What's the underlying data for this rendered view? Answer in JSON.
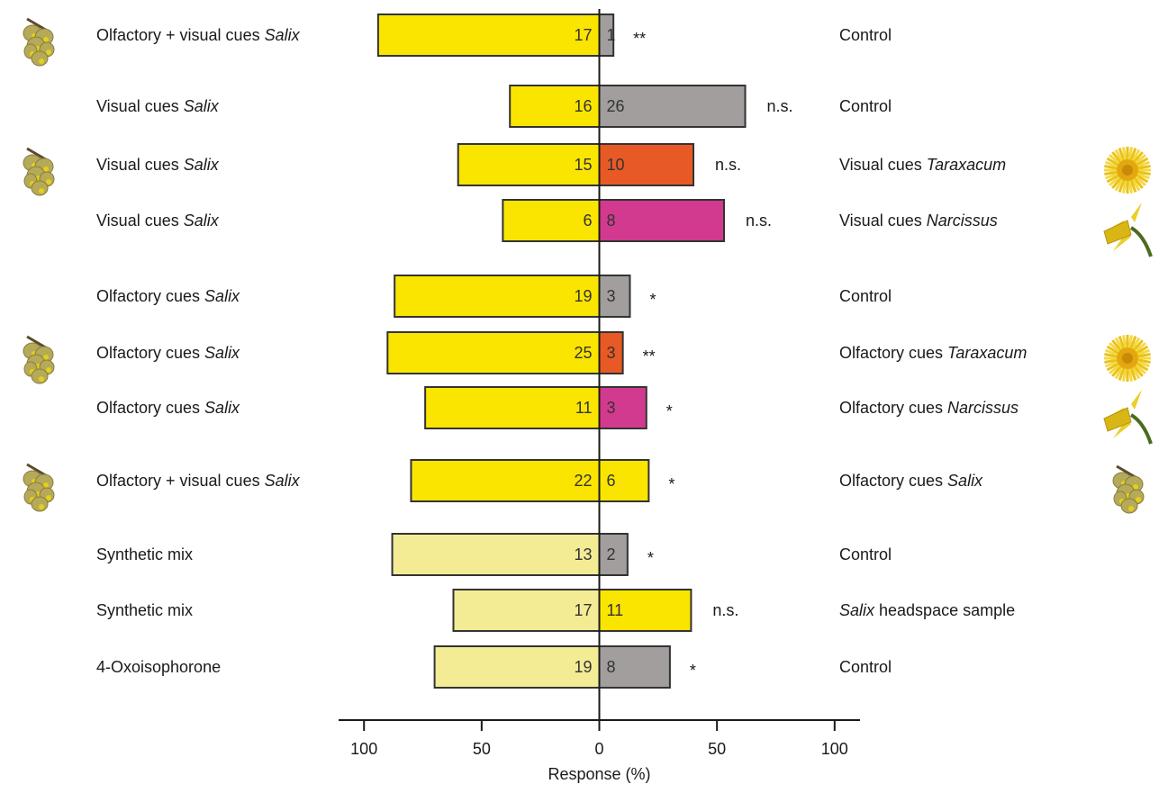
{
  "chart_data": {
    "type": "bar",
    "layout": "diverging-horizontal",
    "xlabel": "Response (%)",
    "xlim": [
      -100,
      100
    ],
    "xticks": [
      {
        "value": -100,
        "label": "100"
      },
      {
        "value": -50,
        "label": "50"
      },
      {
        "value": 0,
        "label": "0"
      },
      {
        "value": 50,
        "label": "50"
      },
      {
        "value": 100,
        "label": "100"
      }
    ],
    "colors": {
      "salix": "#fae500",
      "synthetic": "#f3ec95",
      "control": "#a19e9d",
      "taraxacum": "#e85a25",
      "narcissus": "#d23a8f",
      "bar_outline": "#333333"
    },
    "rows": [
      {
        "left_label": [
          "Olfactory + visual cues ",
          "Salix"
        ],
        "right_label": [
          "Control"
        ],
        "left_value": 94,
        "right_value": 6,
        "left_n": "17",
        "right_n": "1",
        "significance": "**",
        "left_color": "salix",
        "right_color": "control",
        "left_icon": "willow-catkin-icon",
        "right_icon": null,
        "group": 1
      },
      {
        "left_label": [
          "Visual cues ",
          "Salix"
        ],
        "right_label": [
          "Control"
        ],
        "left_value": 38,
        "right_value": 62,
        "left_n": "16",
        "right_n": "26",
        "significance": "n.s.",
        "left_color": "salix",
        "right_color": "control",
        "left_icon": null,
        "right_icon": null,
        "group": 1
      },
      {
        "left_label": [
          "Visual cues ",
          "Salix"
        ],
        "right_label": [
          "Visual cues ",
          "Taraxacum"
        ],
        "left_value": 60,
        "right_value": 40,
        "left_n": "15",
        "right_n": "10",
        "significance": "n.s.",
        "left_color": "salix",
        "right_color": "taraxacum",
        "left_icon": "willow-catkin-icon",
        "right_icon": "dandelion-icon",
        "group": 1
      },
      {
        "left_label": [
          "Visual cues ",
          "Salix"
        ],
        "right_label": [
          "Visual cues ",
          "Narcissus"
        ],
        "left_value": 41,
        "right_value": 53,
        "left_n": "6",
        "right_n": "8",
        "significance": "n.s.",
        "left_color": "salix",
        "right_color": "narcissus",
        "left_icon": null,
        "right_icon": "daffodil-icon",
        "group": 1
      },
      {
        "left_label": [
          "Olfactory cues ",
          "Salix"
        ],
        "right_label": [
          "Control"
        ],
        "left_value": 87,
        "right_value": 13,
        "left_n": "19",
        "right_n": "3",
        "significance": "*",
        "left_color": "salix",
        "right_color": "control",
        "left_icon": null,
        "right_icon": null,
        "group": 2
      },
      {
        "left_label": [
          "Olfactory cues ",
          "Salix"
        ],
        "right_label": [
          "Olfactory cues ",
          "Taraxacum"
        ],
        "left_value": 90,
        "right_value": 10,
        "left_n": "25",
        "right_n": "3",
        "significance": "**",
        "left_color": "salix",
        "right_color": "taraxacum",
        "left_icon": "willow-catkin-icon",
        "right_icon": "dandelion-icon",
        "group": 2
      },
      {
        "left_label": [
          "Olfactory cues ",
          "Salix"
        ],
        "right_label": [
          "Olfactory cues ",
          "Narcissus"
        ],
        "left_value": 74,
        "right_value": 20,
        "left_n": "11",
        "right_n": "3",
        "significance": "*",
        "left_color": "salix",
        "right_color": "narcissus",
        "left_icon": null,
        "right_icon": "daffodil-icon",
        "group": 2
      },
      {
        "left_label": [
          "Olfactory + visual cues ",
          "Salix"
        ],
        "right_label": [
          "Olfactory cues ",
          "Salix"
        ],
        "left_value": 80,
        "right_value": 21,
        "left_n": "22",
        "right_n": "6",
        "significance": "*",
        "left_color": "salix",
        "right_color": "salix",
        "left_icon": "willow-catkin-icon",
        "right_icon": "willow-catkin-icon",
        "group": 3
      },
      {
        "left_label": [
          "Synthetic mix"
        ],
        "right_label": [
          "Control"
        ],
        "left_value": 88,
        "right_value": 12,
        "left_n": "13",
        "right_n": "2",
        "significance": "*",
        "left_color": "synthetic",
        "right_color": "control",
        "left_icon": null,
        "right_icon": null,
        "group": 4
      },
      {
        "left_label": [
          "Synthetic mix"
        ],
        "right_label": [
          "Salix",
          " headspace sample"
        ],
        "left_value": 62,
        "right_value": 39,
        "left_n": "17",
        "right_n": "11",
        "significance": "n.s.",
        "left_color": "synthetic",
        "right_color": "salix",
        "left_icon": null,
        "right_icon": null,
        "group": 4
      },
      {
        "left_label": [
          "4-Oxoisophorone"
        ],
        "right_label": [
          "Control"
        ],
        "left_value": 70,
        "right_value": 30,
        "left_n": "19",
        "right_n": "8",
        "significance": "*",
        "left_color": "synthetic",
        "right_color": "control",
        "left_icon": null,
        "right_icon": null,
        "group": 4
      }
    ]
  }
}
